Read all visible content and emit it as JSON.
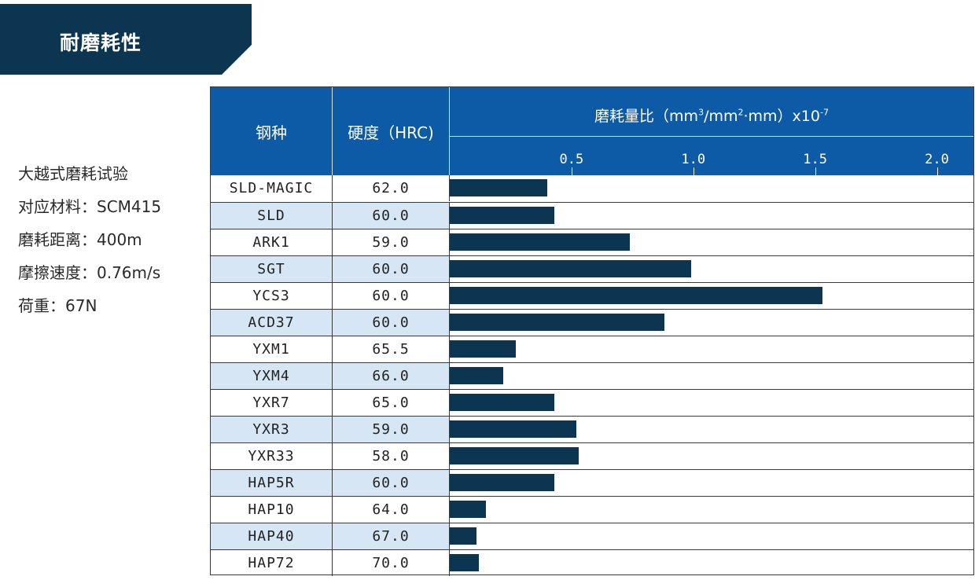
{
  "title": "耐磨耗性",
  "conditions": [
    "大越式磨耗试验",
    "对应材料：SCM415",
    "磨耗距离：400m",
    "摩擦速度：0.76m/s",
    "荷重：67N"
  ],
  "chart_data": {
    "type": "bar",
    "orientation": "horizontal",
    "headers": {
      "steel": "钢种",
      "hardness": "硬度（HRC)",
      "wear_main": "磨耗量比（mm",
      "wear_sup1": "3",
      "wear_mid": "/mm",
      "wear_sup2": "2",
      "wear_end": "·mm）x10",
      "wear_sup3": "-7"
    },
    "x_ticks": [
      {
        "value": 0.5,
        "label": "0.5"
      },
      {
        "value": 1.0,
        "label": "1.0"
      },
      {
        "value": 1.5,
        "label": "1.5"
      },
      {
        "value": 2.0,
        "label": "2.0"
      }
    ],
    "xlim": [
      0,
      2.15
    ],
    "rows": [
      {
        "steel": "SLD-MAGIC",
        "hardness": "62.0",
        "value": 0.4
      },
      {
        "steel": "SLD",
        "hardness": "60.0",
        "value": 0.43
      },
      {
        "steel": "ARK1",
        "hardness": "59.0",
        "value": 0.74
      },
      {
        "steel": "SGT",
        "hardness": "60.0",
        "value": 0.99
      },
      {
        "steel": "YCS3",
        "hardness": "60.0",
        "value": 1.53
      },
      {
        "steel": "ACD37",
        "hardness": "60.0",
        "value": 0.88
      },
      {
        "steel": "YXM1",
        "hardness": "65.5",
        "value": 0.27
      },
      {
        "steel": "YXM4",
        "hardness": "66.0",
        "value": 0.22
      },
      {
        "steel": "YXR7",
        "hardness": "65.0",
        "value": 0.43
      },
      {
        "steel": "YXR3",
        "hardness": "59.0",
        "value": 0.52
      },
      {
        "steel": "YXR33",
        "hardness": "58.0",
        "value": 0.53
      },
      {
        "steel": "HAP5R",
        "hardness": "60.0",
        "value": 0.43
      },
      {
        "steel": "HAP10",
        "hardness": "64.0",
        "value": 0.15
      },
      {
        "steel": "HAP40",
        "hardness": "67.0",
        "value": 0.11
      },
      {
        "steel": "HAP72",
        "hardness": "70.0",
        "value": 0.12
      }
    ],
    "colors": {
      "bar": "#0c3551",
      "header": "#0d5aa6",
      "alt_row": "#d6e6f5"
    }
  }
}
